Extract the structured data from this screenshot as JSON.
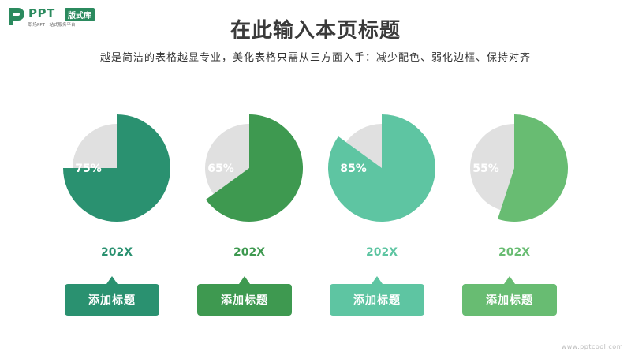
{
  "logo": {
    "brand": "PPT",
    "badge": "版式库",
    "tagline": "职场PPT一站式服务平台",
    "color": "#2b8a5e"
  },
  "header": {
    "title": "在此输入本页标题",
    "subtitle": "越是简洁的表格越显专业，美化表格只需从三方面入手：减少配色、弱化边框、保持对齐"
  },
  "chart_data": {
    "type": "pie",
    "remainder_color": "#e0e0e0",
    "slices": [
      {
        "value": 75,
        "label": "75%",
        "category": "202X",
        "card_label": "添加标题",
        "color": "#2a9170"
      },
      {
        "value": 65,
        "label": "65%",
        "category": "202X",
        "card_label": "添加标题",
        "color": "#3e9950"
      },
      {
        "value": 85,
        "label": "85%",
        "category": "202X",
        "card_label": "添加标题",
        "color": "#5ec5a2"
      },
      {
        "value": 55,
        "label": "55%",
        "category": "202X",
        "card_label": "添加标题",
        "color": "#68bc72"
      }
    ]
  },
  "watermark": "www.pptcool.com"
}
